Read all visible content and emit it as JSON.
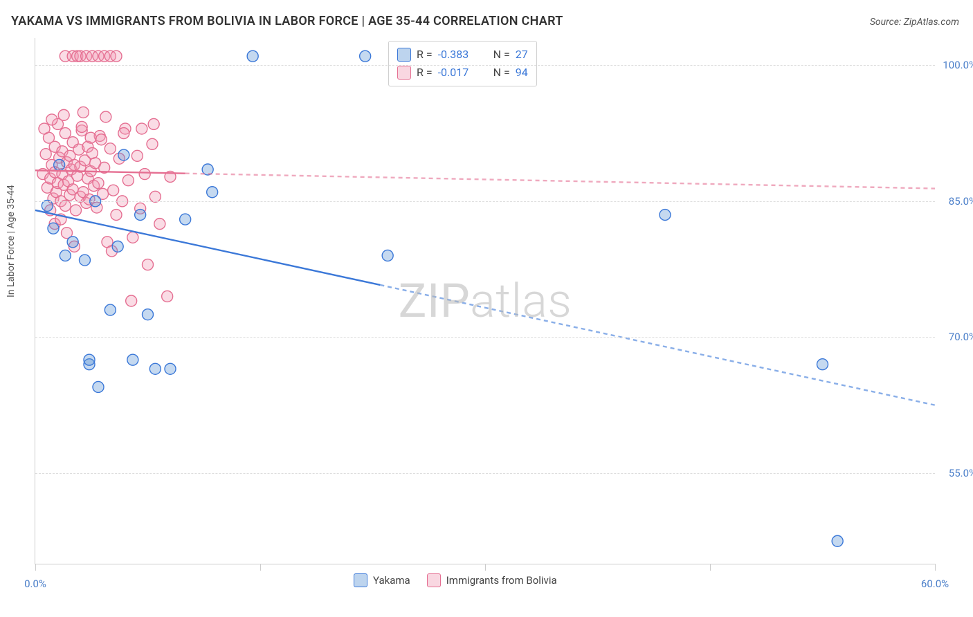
{
  "title": "YAKAMA VS IMMIGRANTS FROM BOLIVIA IN LABOR FORCE | AGE 35-44 CORRELATION CHART",
  "source": "Source: ZipAtlas.com",
  "ylabel": "In Labor Force | Age 35-44",
  "watermark": "ZIPatlas",
  "chart": {
    "type": "scatter",
    "background_color": "#ffffff",
    "grid_color": "#dddddd",
    "axis_color": "#cccccc",
    "title_fontsize": 18,
    "label_fontsize": 14,
    "tick_fontsize": 15,
    "tick_color": "#4a7ec9",
    "text_color": "#555555",
    "xlim": [
      0,
      60
    ],
    "ylim": [
      45,
      103
    ],
    "xticks": [
      0,
      15,
      30,
      45,
      60
    ],
    "xtick_labels": [
      "0.0%",
      "",
      "",
      "",
      "60.0%"
    ],
    "yticks": [
      55,
      70,
      85,
      100
    ],
    "ytick_labels": [
      "55.0%",
      "70.0%",
      "85.0%",
      "100.0%"
    ],
    "marker_radius": 8,
    "marker_fill_opacity": 0.35,
    "marker_stroke_width": 1.4,
    "trendline_width": 2.4,
    "trendline_dash": "6 5",
    "series": [
      {
        "name": "Yakama",
        "color": "#5a93d4",
        "stroke": "#3b78d8",
        "R": "-0.383",
        "N": "27",
        "trend": {
          "x1": 0,
          "y1": 84.0,
          "x2": 60,
          "y2": 62.5,
          "solid_until": 23
        },
        "points": [
          [
            0.8,
            84.5
          ],
          [
            1.2,
            82.0
          ],
          [
            1.6,
            89.0
          ],
          [
            2.0,
            79.0
          ],
          [
            2.5,
            80.5
          ],
          [
            3.3,
            78.5
          ],
          [
            3.6,
            67.0
          ],
          [
            3.6,
            67.5
          ],
          [
            4.0,
            85.0
          ],
          [
            4.2,
            64.5
          ],
          [
            5.0,
            73.0
          ],
          [
            5.5,
            80.0
          ],
          [
            5.9,
            90.1
          ],
          [
            6.5,
            67.5
          ],
          [
            7.0,
            83.5
          ],
          [
            7.5,
            72.5
          ],
          [
            8.0,
            66.5
          ],
          [
            9.0,
            66.5
          ],
          [
            10.0,
            83.0
          ],
          [
            11.5,
            88.5
          ],
          [
            11.8,
            86.0
          ],
          [
            14.5,
            101.0
          ],
          [
            22.0,
            101.0
          ],
          [
            23.5,
            79.0
          ],
          [
            42.0,
            83.5
          ],
          [
            52.5,
            67.0
          ],
          [
            53.5,
            47.5
          ]
        ]
      },
      {
        "name": "Immigrants from Bolivia",
        "color": "#f19ab4",
        "stroke": "#e56f92",
        "R": "-0.017",
        "N": "94",
        "trend": {
          "x1": 0,
          "y1": 88.4,
          "x2": 60,
          "y2": 86.4,
          "solid_until": 10
        },
        "points": [
          [
            0.5,
            88.0
          ],
          [
            0.7,
            90.2
          ],
          [
            0.8,
            86.5
          ],
          [
            0.9,
            92.0
          ],
          [
            1.0,
            87.5
          ],
          [
            1.1,
            89.0
          ],
          [
            1.2,
            85.3
          ],
          [
            1.3,
            91.0
          ],
          [
            1.3,
            88.2
          ],
          [
            1.4,
            86.0
          ],
          [
            1.5,
            93.5
          ],
          [
            1.5,
            87.0
          ],
          [
            1.6,
            89.8
          ],
          [
            1.7,
            85.0
          ],
          [
            1.8,
            90.5
          ],
          [
            1.8,
            88.0
          ],
          [
            1.9,
            86.8
          ],
          [
            2.0,
            92.5
          ],
          [
            2.0,
            84.5
          ],
          [
            2.1,
            89.3
          ],
          [
            2.2,
            87.2
          ],
          [
            2.3,
            90.0
          ],
          [
            2.3,
            85.7
          ],
          [
            2.4,
            88.5
          ],
          [
            2.5,
            91.5
          ],
          [
            2.5,
            86.3
          ],
          [
            2.6,
            89.0
          ],
          [
            2.7,
            84.0
          ],
          [
            2.8,
            87.8
          ],
          [
            2.9,
            90.7
          ],
          [
            3.0,
            85.5
          ],
          [
            3.0,
            88.8
          ],
          [
            3.1,
            92.8
          ],
          [
            3.2,
            86.0
          ],
          [
            3.3,
            89.5
          ],
          [
            3.4,
            84.8
          ],
          [
            3.5,
            87.5
          ],
          [
            3.5,
            91.0
          ],
          [
            3.6,
            85.2
          ],
          [
            3.7,
            88.3
          ],
          [
            3.8,
            90.3
          ],
          [
            3.9,
            86.7
          ],
          [
            4.0,
            89.2
          ],
          [
            4.1,
            84.3
          ],
          [
            4.2,
            87.0
          ],
          [
            4.3,
            92.2
          ],
          [
            4.5,
            85.8
          ],
          [
            4.6,
            88.7
          ],
          [
            4.8,
            80.5
          ],
          [
            5.0,
            90.8
          ],
          [
            5.2,
            86.2
          ],
          [
            5.4,
            83.5
          ],
          [
            5.6,
            89.7
          ],
          [
            5.8,
            85.0
          ],
          [
            6.0,
            93.0
          ],
          [
            6.2,
            87.3
          ],
          [
            6.5,
            81.0
          ],
          [
            6.8,
            90.0
          ],
          [
            7.0,
            84.2
          ],
          [
            7.3,
            88.0
          ],
          [
            7.5,
            78.0
          ],
          [
            7.8,
            91.3
          ],
          [
            8.0,
            85.5
          ],
          [
            8.3,
            82.5
          ],
          [
            8.8,
            74.5
          ],
          [
            9.0,
            87.7
          ],
          [
            2.0,
            101.0
          ],
          [
            2.5,
            101.0
          ],
          [
            2.8,
            101.0
          ],
          [
            3.0,
            101.0
          ],
          [
            3.4,
            101.0
          ],
          [
            3.8,
            101.0
          ],
          [
            4.2,
            101.0
          ],
          [
            4.6,
            101.0
          ],
          [
            5.0,
            101.0
          ],
          [
            5.4,
            101.0
          ],
          [
            1.0,
            84.0
          ],
          [
            1.3,
            82.5
          ],
          [
            1.7,
            83.0
          ],
          [
            2.1,
            81.5
          ],
          [
            2.6,
            80.0
          ],
          [
            3.1,
            93.2
          ],
          [
            3.7,
            92.0
          ],
          [
            4.4,
            91.8
          ],
          [
            5.1,
            79.5
          ],
          [
            5.9,
            92.5
          ],
          [
            6.4,
            74.0
          ],
          [
            7.1,
            93.0
          ],
          [
            7.9,
            93.5
          ],
          [
            0.6,
            93.0
          ],
          [
            1.1,
            94.0
          ],
          [
            1.9,
            94.5
          ],
          [
            3.2,
            94.8
          ],
          [
            4.7,
            94.3
          ]
        ]
      }
    ]
  },
  "legend_top": {
    "r_label": "R =",
    "n_label": "N ="
  },
  "legend_bottom": {
    "items": [
      "Yakama",
      "Immigrants from Bolivia"
    ]
  }
}
